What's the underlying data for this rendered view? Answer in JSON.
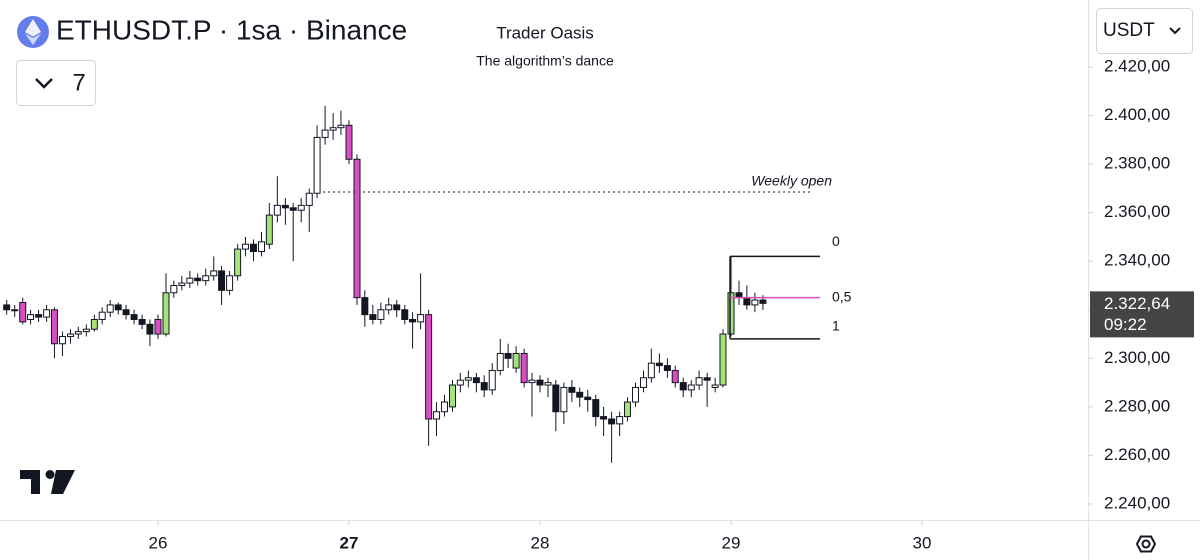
{
  "chart_data": {
    "type": "candlestick",
    "title": "ETHUSDT.P · 1sa · Binance",
    "watermark_title": "Trader Oasis",
    "watermark_subtitle": "The algorithm’s dance",
    "interval_badge": "7",
    "currency": "USDT",
    "last_price_label": "2.322,64",
    "countdown": "09:22",
    "up_color": "#ffffff",
    "down_color": "#131722",
    "highlight_up_color": "#a6e27a",
    "highlight_down_color": "#d94fc3",
    "highlighted": [
      2,
      6,
      11,
      19,
      20,
      29,
      33,
      43,
      44,
      53,
      56,
      64,
      65,
      78,
      84,
      90,
      91
    ],
    "x": [
      25.208,
      25.25,
      25.292,
      25.333,
      25.375,
      25.417,
      25.458,
      25.5,
      25.542,
      25.583,
      25.625,
      25.667,
      25.708,
      25.75,
      25.792,
      25.833,
      25.875,
      25.917,
      25.958,
      26,
      26.042,
      26.083,
      26.125,
      26.167,
      26.208,
      26.25,
      26.292,
      26.333,
      26.375,
      26.417,
      26.458,
      26.5,
      26.542,
      26.583,
      26.625,
      26.667,
      26.708,
      26.75,
      26.792,
      26.833,
      26.875,
      26.917,
      26.958,
      27,
      27.042,
      27.083,
      27.125,
      27.167,
      27.208,
      27.25,
      27.292,
      27.333,
      27.375,
      27.417,
      27.458,
      27.5,
      27.542,
      27.583,
      27.625,
      27.667,
      27.708,
      27.75,
      27.792,
      27.833,
      27.875,
      27.917,
      27.958,
      28,
      28.042,
      28.083,
      28.125,
      28.167,
      28.208,
      28.25,
      28.292,
      28.333,
      28.375,
      28.417,
      28.458,
      28.5,
      28.542,
      28.583,
      28.625,
      28.667,
      28.708,
      28.75,
      28.792,
      28.833,
      28.875,
      28.917,
      28.958,
      29,
      29.042,
      29.083,
      29.125,
      29.167
    ],
    "open": [
      2322,
      2320,
      2323,
      2316,
      2318,
      2317,
      2320,
      2306,
      2309,
      2310,
      2311,
      2312,
      2316,
      2319,
      2322,
      2320,
      2318,
      2316,
      2314,
      2316,
      2310,
      2327,
      2330,
      2331,
      2333,
      2332,
      2334,
      2336,
      2328,
      2334,
      2345,
      2347,
      2344,
      2347,
      2359,
      2363,
      2362,
      2361,
      2363,
      2368,
      2391,
      2394,
      2395,
      2396,
      2382,
      2325,
      2318,
      2316,
      2320,
      2322,
      2320,
      2316,
      2315,
      2318,
      2275,
      2278,
      2280,
      2289,
      2291,
      2292,
      2290,
      2287,
      2295,
      2302,
      2296,
      2302,
      2290,
      2291,
      2289,
      2289,
      2278,
      2288,
      2286,
      2284,
      2283,
      2276,
      2275,
      2273,
      2276,
      2282,
      2288,
      2292,
      2298,
      2297,
      2295,
      2290,
      2287,
      2289,
      2292,
      2288,
      2289,
      2310,
      2327,
      2325,
      2322,
      2324
    ],
    "high": [
      2324,
      2322,
      2325,
      2320,
      2320,
      2322,
      2321,
      2311,
      2312,
      2313,
      2314,
      2318,
      2321,
      2324,
      2323,
      2322,
      2320,
      2318,
      2316,
      2318,
      2335,
      2332,
      2334,
      2336,
      2335,
      2337,
      2342,
      2338,
      2336,
      2347,
      2350,
      2349,
      2352,
      2364,
      2375,
      2366,
      2364,
      2366,
      2370,
      2396,
      2404,
      2401,
      2402,
      2398,
      2384,
      2328,
      2322,
      2323,
      2325,
      2324,
      2322,
      2319,
      2335,
      2320,
      2282,
      2285,
      2291,
      2294,
      2295,
      2294,
      2293,
      2298,
      2308,
      2306,
      2305,
      2304,
      2294,
      2293,
      2292,
      2291,
      2290,
      2291,
      2288,
      2287,
      2285,
      2280,
      2278,
      2278,
      2284,
      2290,
      2295,
      2304,
      2302,
      2300,
      2297,
      2292,
      2291,
      2295,
      2294,
      2292,
      2312,
      2342,
      2332,
      2330,
      2327,
      2326
    ],
    "low": [
      2318,
      2317,
      2314,
      2314,
      2315,
      2315,
      2300,
      2301,
      2306,
      2308,
      2309,
      2311,
      2314,
      2317,
      2318,
      2316,
      2314,
      2312,
      2305,
      2308,
      2309,
      2325,
      2328,
      2329,
      2330,
      2330,
      2332,
      2322,
      2326,
      2332,
      2342,
      2340,
      2342,
      2345,
      2356,
      2355,
      2340,
      2356,
      2352,
      2366,
      2388,
      2390,
      2392,
      2380,
      2322,
      2313,
      2314,
      2314,
      2318,
      2317,
      2314,
      2304,
      2312,
      2264,
      2268,
      2276,
      2278,
      2286,
      2288,
      2286,
      2284,
      2285,
      2293,
      2296,
      2294,
      2288,
      2276,
      2286,
      2284,
      2270,
      2273,
      2282,
      2280,
      2278,
      2272,
      2268,
      2257,
      2268,
      2274,
      2280,
      2286,
      2290,
      2294,
      2292,
      2288,
      2284,
      2284,
      2287,
      2280,
      2286,
      2288,
      2309,
      2322,
      2320,
      2319,
      2320
    ],
    "close": [
      2320,
      2320,
      2315,
      2318,
      2317,
      2320,
      2306,
      2309,
      2310,
      2311,
      2312,
      2316,
      2319,
      2322,
      2320,
      2318,
      2316,
      2314,
      2310,
      2310,
      2327,
      2330,
      2331,
      2333,
      2332,
      2334,
      2336,
      2328,
      2334,
      2345,
      2347,
      2344,
      2348,
      2359,
      2363,
      2362,
      2361,
      2363,
      2368,
      2391,
      2394,
      2395,
      2396,
      2382,
      2325,
      2318,
      2316,
      2320,
      2322,
      2320,
      2316,
      2315,
      2318,
      2275,
      2278,
      2282,
      2289,
      2291,
      2292,
      2290,
      2287,
      2295,
      2302,
      2300,
      2302,
      2290,
      2291,
      2289,
      2290,
      2278,
      2288,
      2286,
      2284,
      2283,
      2276,
      2275,
      2273,
      2276,
      2282,
      2288,
      2292,
      2298,
      2297,
      2295,
      2290,
      2287,
      2289,
      2292,
      2291,
      2289,
      2310,
      2327,
      2325,
      2322,
      2324,
      2322.64
    ],
    "weekly_open": {
      "label": "Weekly open",
      "value": 2368.5,
      "x_start": 26.838,
      "x_end": 29.424
    },
    "fib": {
      "x_start": 28.995,
      "x_end": 29.466,
      "color": "#d94fc3",
      "levels": [
        {
          "label": "0",
          "value": 2342
        },
        {
          "label": "0,5",
          "value": 2325
        },
        {
          "label": "1",
          "value": 2308
        }
      ]
    },
    "xlim": [
      25.173,
      30.869
    ],
    "xticks": [
      26,
      27,
      28,
      29,
      30
    ],
    "xtick_bold": 27,
    "ylim": [
      2233.4,
      2447.6
    ],
    "yticks": [
      {
        "value": 2240,
        "label": "2.240,00"
      },
      {
        "value": 2260,
        "label": "2.260,00"
      },
      {
        "value": 2280,
        "label": "2.280,00"
      },
      {
        "value": 2300,
        "label": "2.300,00"
      },
      {
        "value": 2320,
        "label": "2.320,00"
      },
      {
        "value": 2340,
        "label": "2.340,00"
      },
      {
        "value": 2360,
        "label": "2.360,00"
      },
      {
        "value": 2380,
        "label": "2.380,00"
      },
      {
        "value": 2400,
        "label": "2.400,00"
      },
      {
        "value": 2420,
        "label": "2.420,00"
      }
    ]
  }
}
